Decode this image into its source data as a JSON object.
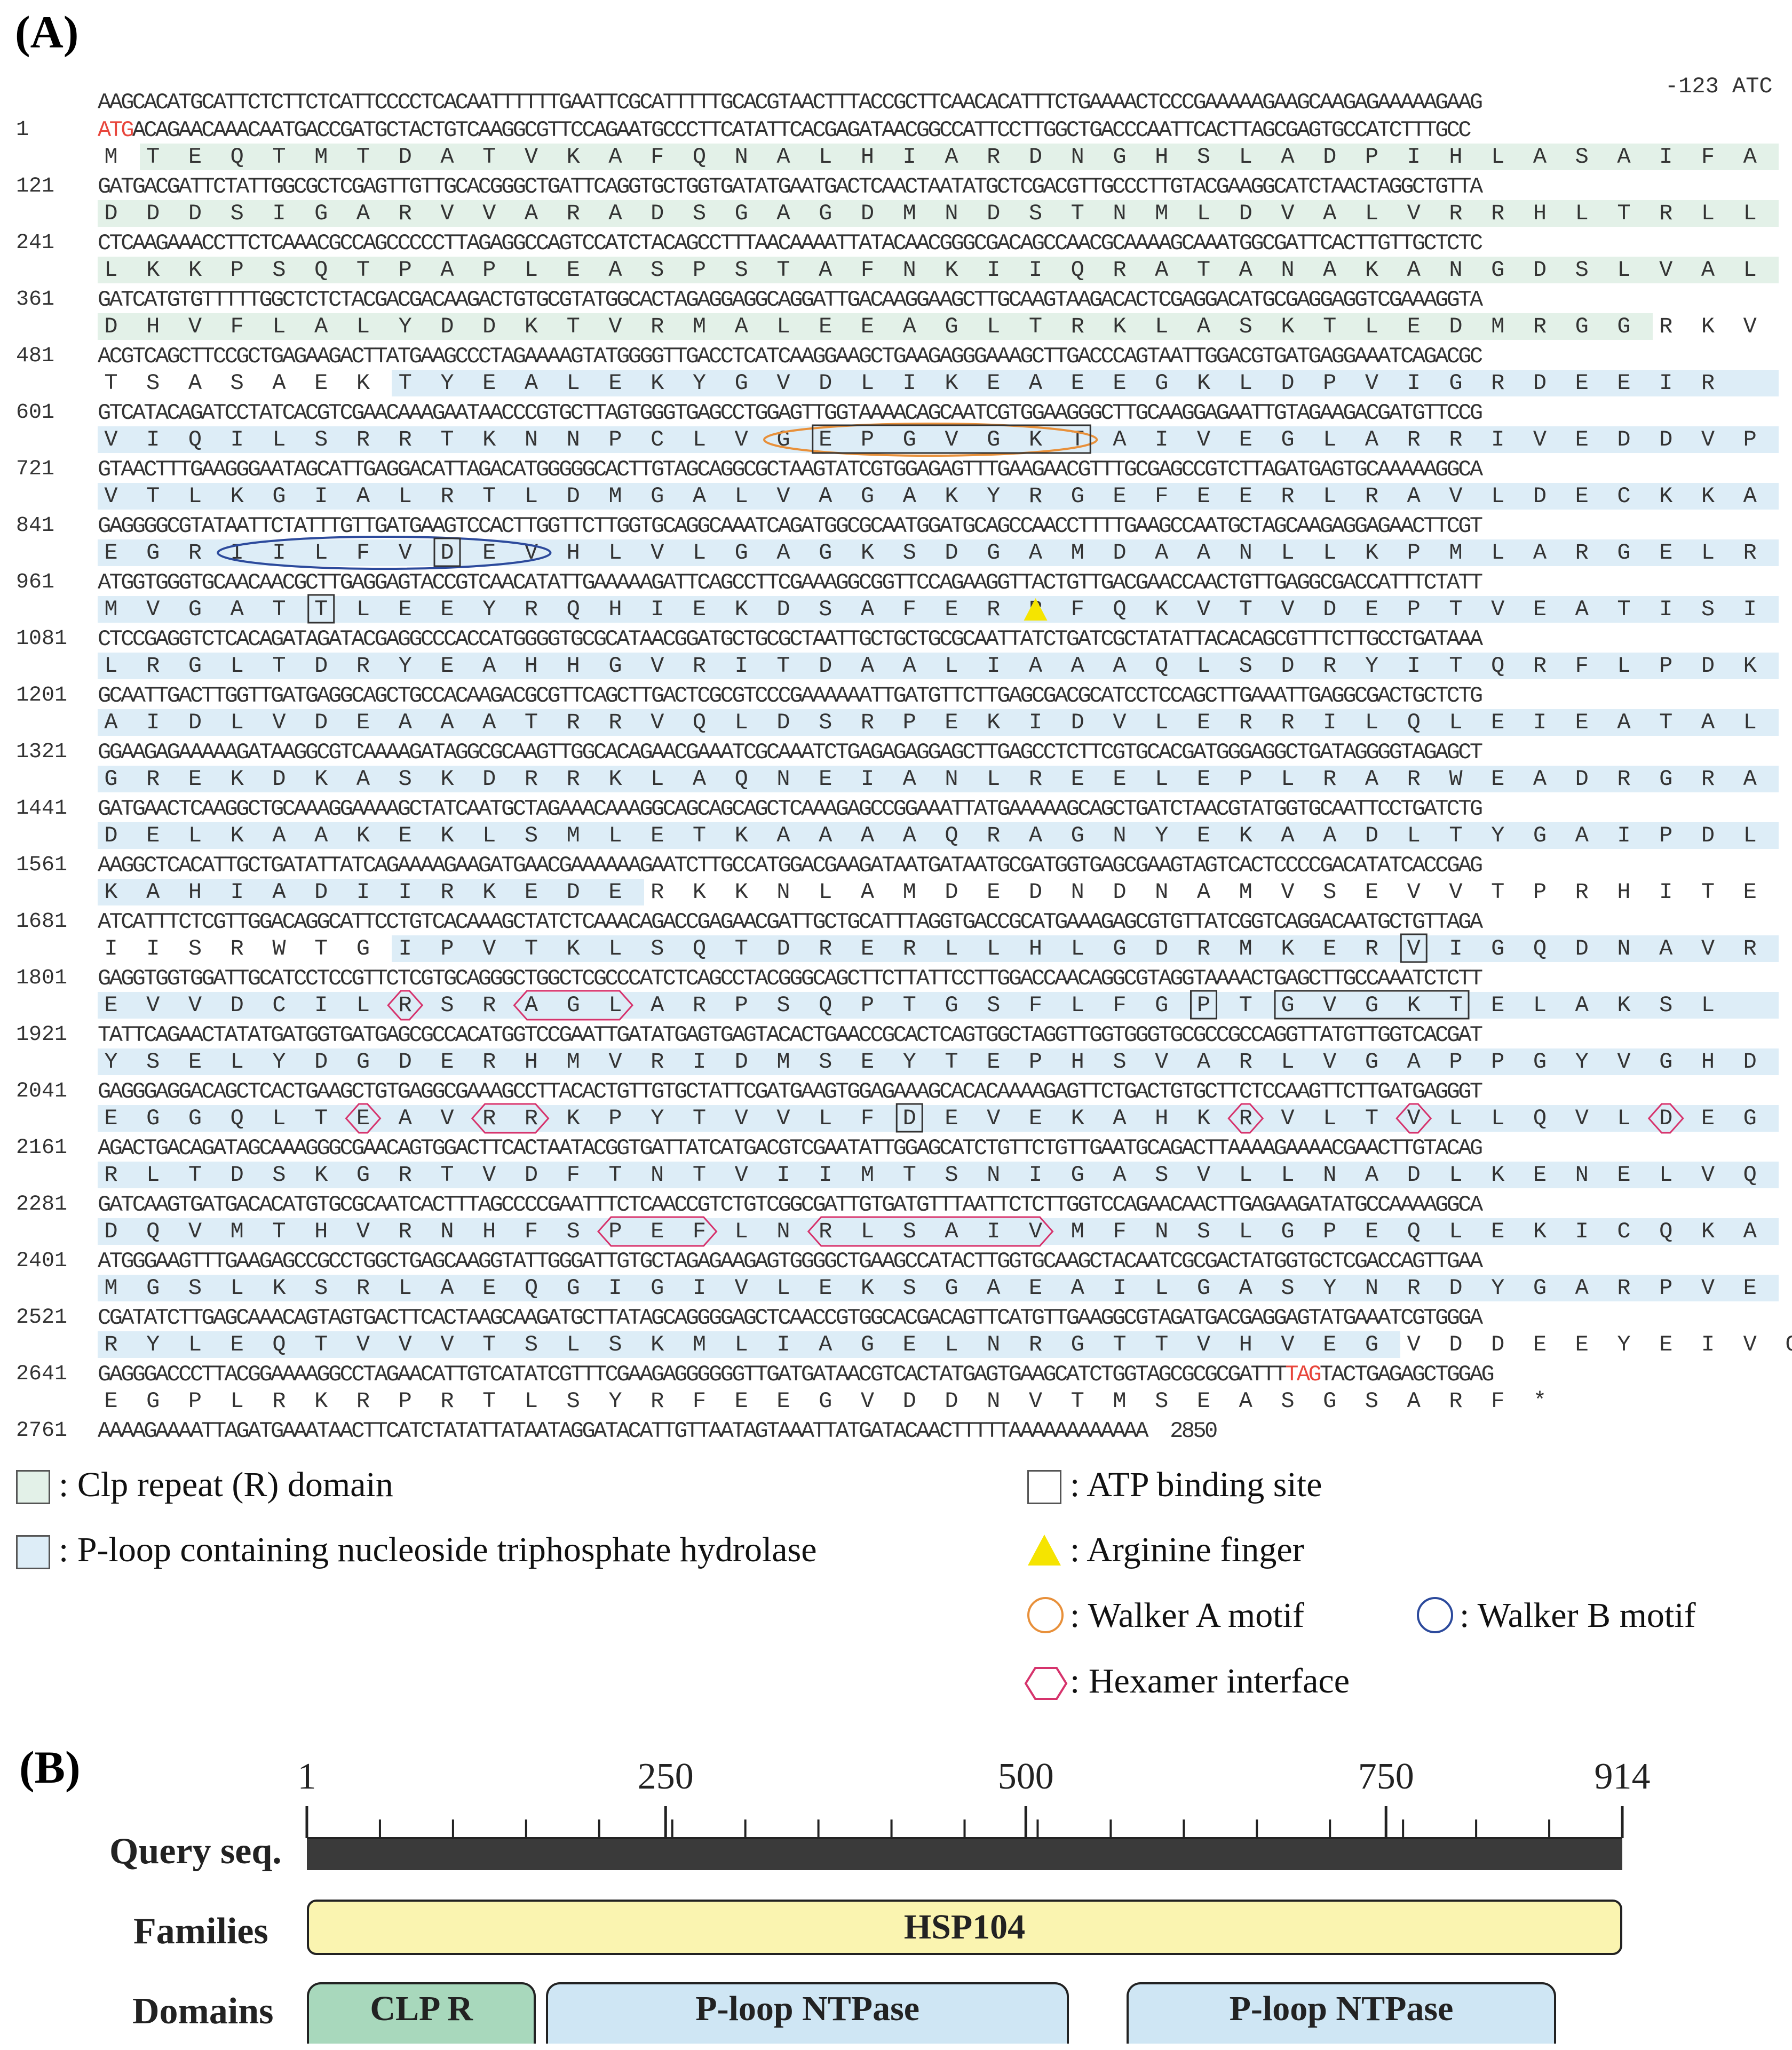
{
  "panel_a": {
    "label": "(A)",
    "upstream_label": "-123 ATC",
    "start_codon": "ATG",
    "stop_codon": "TAG",
    "rows": [
      {
        "num": "",
        "dna": "AAGCACATGCATTCTCTTCTCATTCCCCTCACAATTTTTTGAATTCGCATTTTTGCACGTAACTTTACCGCTTCAACACATTTCTGAAAACTCCCGAAAAAGAAGCAAGAGAAAAAGAAG",
        "aa": ""
      },
      {
        "num": "1",
        "dna": "ATGACAGAACAAACAATGACCGATGCTACTGTCAAGGCGTTCCAGAATGCCCTTCATATTCACGAGATAACGGCCATTCCTTGGCTGACCCAATTCACTTAGCGAGTGCCATCTTTGCC",
        "aa": "M T E Q T M T D A T V K A F Q N A L H I A R D N G H S L A D P I H L A S A I F A"
      },
      {
        "num": "121",
        "dna": "GATGACGATTCTATTGGCGCTCGAGTTGTTGCACGGGCTGATTCAGGTGCTGGTGATATGAATGACTCAACTAATATGCTCGACGTTGCCCTTGTACGAAGGCATCTAACTAGGCTGTTA",
        "aa": "D D D S I G A R V V A R A D S G A G D M N D S T N M L D V A L V R R H L T R L L"
      },
      {
        "num": "241",
        "dna": "CTCAAGAAACCTTCTCAAACGCCAGCCCCCTTAGAGGCCAGTCCATCTACAGCCTTTAACAAAATTATACAACGGGCGACAGCCAACGCAAAAGCAAATGGCGATTCACTTGTTGCTCTC",
        "aa": "L K K P S Q T P A P L E A S P S T A F N K I I Q R A T A N A K A N G D S L V A L"
      },
      {
        "num": "361",
        "dna": "GATCATGTGTTTTTGGCTCTCTACGACGACAAGACTGTGCGTATGGCACTAGAGGAGGCAGGATTGACAAGGAAGCTTGCAAGTAAGACACTCGAGGACATGCGAGGAGGTCGAAAGGTA",
        "aa": "D H V F L A L Y D D K T V R M A L E E A G L T R K L A S K T L E D M R G G R K V"
      },
      {
        "num": "481",
        "dna": "ACGTCAGCTTCCGCTGAGAAGACTTATGAAGCCCTAGAAAAGTATGGGGTTGACCTCATCAAGGAAGCTGAAGAGGGAAAGCTTGACCCAGTAATTGGACGTGATGAGGAAATCAGACGC",
        "aa": "T S A S A E K T Y E A L E K Y G V D L I K E A E E G K L D P V I G R D E E I R"
      },
      {
        "num": "601",
        "dna": "GTCATACAGATCCTATCACGTCGAACAAAGAATAACCCGTGCTTAGTGGGTGAGCCTGGAGTTGGTAAAACAGCAATCGTGGAAGGGCTTGCAAGGAGAATTGTAGAAGACGATGTTCCG",
        "aa": "V I Q I L S R R T K N N P C L V G E P G V G K T A I V E G L A R R I V E D D V P"
      },
      {
        "num": "721",
        "dna": "GTAACTTTGAAGGGAATAGCATTGAGGACATTAGACATGGGGGCACTTGTAGCAGGCGCTAAGTATCGTGGAGAGTTTGAAGAACGTTTGCGAGCCGTCTTAGATGAGTGCAAAAAGGCA",
        "aa": "V T L K G I A L R T L D M G A L V A G A K Y R G E F E E R L R A V L D E C K K A"
      },
      {
        "num": "841",
        "dna": "GAGGGGCGTATAATTCTATTTGTTGATGAAGTCCACTTGGTTCTTGGTGCAGGCAAATCAGATGGCGCAATGGATGCAGCCAACCTTTTGAAGCCAATGCTAGCAAGAGGAGAACTTCGT",
        "aa": "E G R I I L F V D E V H L V L G A G K S D G A M D A A N L L K P M L A R G E L R"
      },
      {
        "num": "961",
        "dna": "ATGGTGGGTGCAACAACGCTTGAGGAGTACCGTCAACATATTGAAAAAGATTCAGCCTTCGAAAGGCGGTTCCAGAAGGTTACTGTTGACGAACCAACTGTTGAGGCGACCATTTCTATT",
        "aa": "M V G A T T L E E Y R Q H I E K D S A F E R R F Q K V T V D E P T V E A T I S I"
      },
      {
        "num": "1081",
        "dna": "CTCCGAGGTCTCACAGATAGATACGAGGCCCACCATGGGGTGCGCATAACGGATGCTGCGCTAATTGCTGCTGCGCAATTATCTGATCGCTATATTACACAGCGTTTCTTGCCTGATAAA",
        "aa": "L R G L T D R Y E A H H G V R I T D A A L I A A A Q L S D R Y I T Q R F L P D K"
      },
      {
        "num": "1201",
        "dna": "GCAATTGACTTGGTTGATGAGGCAGCTGCCACAAGACGCGTTCAGCTTGACTCGCGTCCCGAAAAAATTGATGTTCTTGAGCGACGCATCCTCCAGCTTGAAATTGAGGCGACTGCTCTG",
        "aa": "A I D L V D E A A A T R R V Q L D S R P E K I D V L E R R I L Q L E I E A T A L"
      },
      {
        "num": "1321",
        "dna": "GGAAGAGAAAAAGATAAGGCGTCAAAAGATAGGCGCAAGTTGGCACAGAACGAAATCGCAAATCTGAGAGAGGAGCTTGAGCCTCTTCGTGCACGATGGGAGGCTGATAGGGGTAGAGCT",
        "aa": "G R E K D K A S K D R R K L A Q N E I A N L R E E L E P L R A R W E A D R G R A"
      },
      {
        "num": "1441",
        "dna": "GATGAACTCAAGGCTGCAAAGGAAAAGCTATCAATGCTAGAAACAAAGGCAGCAGCAGCTCAAAGAGCCGGAAATTATGAAAAAGCAGCTGATCTAACGTATGGTGCAATTCCTGATCTG",
        "aa": "D E L K A A K E K L S M L E T K A A A A Q R A G N Y E K A A D L T Y G A I P D L"
      },
      {
        "num": "1561",
        "dna": "AAGGCTCACATTGCTGATATTATCAGAAAAGAAGATGAACGAAAAAAGAATCTTGCCATGGACGAAGATAATGATAATGCGATGGTGAGCGAAGTAGTCACTCCCCGACATATCACCGAG",
        "aa": "K A H I A D I I R K E D E R K K N L A M D E D N D N A M V S E V V T P R H I T E"
      },
      {
        "num": "1681",
        "dna": "ATCATTTCTCGTTGGACAGGCATTCCTGTCACAAAGCTATCTCAAACAGACCGAGAACGATTGCTGCATTTAGGTGACCGCATGAAAGAGCGTGTTATCGGTCAGGACAATGCTGTTAGA",
        "aa": "I I S R W T G I P V T K L S Q T D R E R L L H L G D R M K E R V I G Q D N A V R"
      },
      {
        "num": "1801",
        "dna": "GAGGTGGTGGATTGCATCCTCCGTTCTCGTGCAGGGCTGGCTCGCCCATCTCAGCCTACGGGCAGCTTCTTATTCCTTGGACCAACAGGCGTAGGTAAAACTGAGCTTGCCAAATCTCTT",
        "aa": "E V V D C I L R S R A G L A R P S Q P T G S F L F G P T G V G K T E L A K S L"
      },
      {
        "num": "1921",
        "dna": "TATTCAGAACTATATGATGGTGATGAGCGCCACATGGTCCGAATTGATATGAGTGAGTACACTGAACCGCACTCAGTGGCTAGGTTGGTGGGTGCGCCGCCAGGTTATGTTGGTCACGAT",
        "aa": "Y S E L Y D G D E R H M V R I D M S E Y T E P H S V A R L V G A P P G Y V G H D"
      },
      {
        "num": "2041",
        "dna": "GAGGGAGGACAGCTCACTGAAGCTGTGAGGCGAAAGCCTTACACTGTTGTGCTATTCGATGAAGTGGAGAAAGCACACAAAAGAGTTCTGACTGTGCTTCTCCAAGTTCTTGATGAGGGT",
        "aa": "E G G Q L T E A V R R K P Y T V V L F D E V E K A H K R V L T V L L Q V L D E G"
      },
      {
        "num": "2161",
        "dna": "AGACTGACAGATAGCAAAGGGCGAACAGTGGACTTCACTAATACGGTGATTATCATGACGTCGAATATTGGAGCATCTGTTCTGTTGAATGCAGACTTAAAAGAAAACGAACTTGTACAG",
        "aa": "R L T D S K G R T V D F T N T V I I M T S N I G A S V L L N A D L K E N E L V Q"
      },
      {
        "num": "2281",
        "dna": "GATCAAGTGATGACACATGTGCGCAATCACTTTAGCCCCGAATTTCTCAACCGTCTGTCGGCGATTGTGATGTTTAATTCTCTTGGTCCAGAACAACTTGAGAAGATATGCCAAAAGGCA",
        "aa": "D Q V M T H V R N H F S P E F L N R L S A I V M F N S L G P E Q L E K I C Q K A"
      },
      {
        "num": "2401",
        "dna": "ATGGGAAGTTTGAAGAGCCGCCTGGCTGAGCAAGGTATTGGGATTGTGCTAGAGAAGAGTGGGGCTGAAGCCATACTTGGTGCAAGCTACAATCGCGACTATGGTGCTCGACCAGTTGAA",
        "aa": "M G S L K S R L A E Q G I G I V L E K S G A E A I L G A S Y N R D Y G A R P V E"
      },
      {
        "num": "2521",
        "dna": "CGATATCTTGAGCAAACAGTAGTGACTTCACTAAGCAAGATGCTTATAGCAGGGGAGCTCAACCGTGGCACGACAGTTCATGTTGAAGGCGTAGATGACGAGGAGTATGAAATCGTGGGA",
        "aa": "R Y L E Q T V V V T S L S K M L I A G E L N R G T T V H V E G V D D E E Y E I V G"
      },
      {
        "num": "2641",
        "dna": "GAGGGACCCTTACGGAAAAGGCCTAGAACATTGTCATATCGTTTCGAAGAGGGGGGTTGATGATAACGTCACTATGAGTGAAGCATCTGGTAGCGCGCGATTTTAGTACTGAGAGCTGGAG",
        "aa": "E G P L R K R P R T L S Y R F E E G V D D N V T M S E A S G S A R F *"
      },
      {
        "num": "2761",
        "dna": "AAAAGAAAATTAGATGAAATAACTTCATCTATATTATAATAGGATACATTGTTAATAGTAAATTATGATACAACTTTTTAAAAAAAAAAAA  2850",
        "aa": ""
      }
    ],
    "legend": {
      "clp": ": Clp repeat (R) domain",
      "ploop": ": P-loop containing nucleoside triphosphate hydrolase",
      "atp": ": ATP binding site",
      "arg": ": Arginine finger",
      "walker_a": ": Walker A motif",
      "walker_b": ": Walker B motif",
      "hex": ": Hexamer interface"
    },
    "colors": {
      "clp": "#e3f1e8",
      "ploop": "#ddedf7",
      "walker_a": "#e8903a",
      "walker_b": "#2c4a9c",
      "hex": "#d6336c",
      "arg": "#f5e400",
      "codon": "#e8463c"
    }
  },
  "panel_b": {
    "label": "(B)",
    "ticks": [
      "1",
      "250",
      "500",
      "750",
      "914"
    ],
    "tick_values": [
      1,
      250,
      500,
      750,
      914
    ],
    "axis_max": 914,
    "query_label": "Query seq.",
    "families_label": "Families",
    "domains_label": "Domains",
    "families": [
      {
        "name": "HSP104",
        "start": 1,
        "end": 914
      }
    ],
    "domains": [
      {
        "name": "CLP R",
        "start": 1,
        "end": 160
      },
      {
        "name": "P-loop NTPase",
        "start": 167,
        "end": 530
      },
      {
        "name": "P-loop NTPase",
        "start": 570,
        "end": 868
      }
    ],
    "colors": {
      "query": "#3a3a3a",
      "family": "#faf4b0",
      "clp": "#a8d8bc",
      "ploop": "#cfe6f4"
    }
  }
}
